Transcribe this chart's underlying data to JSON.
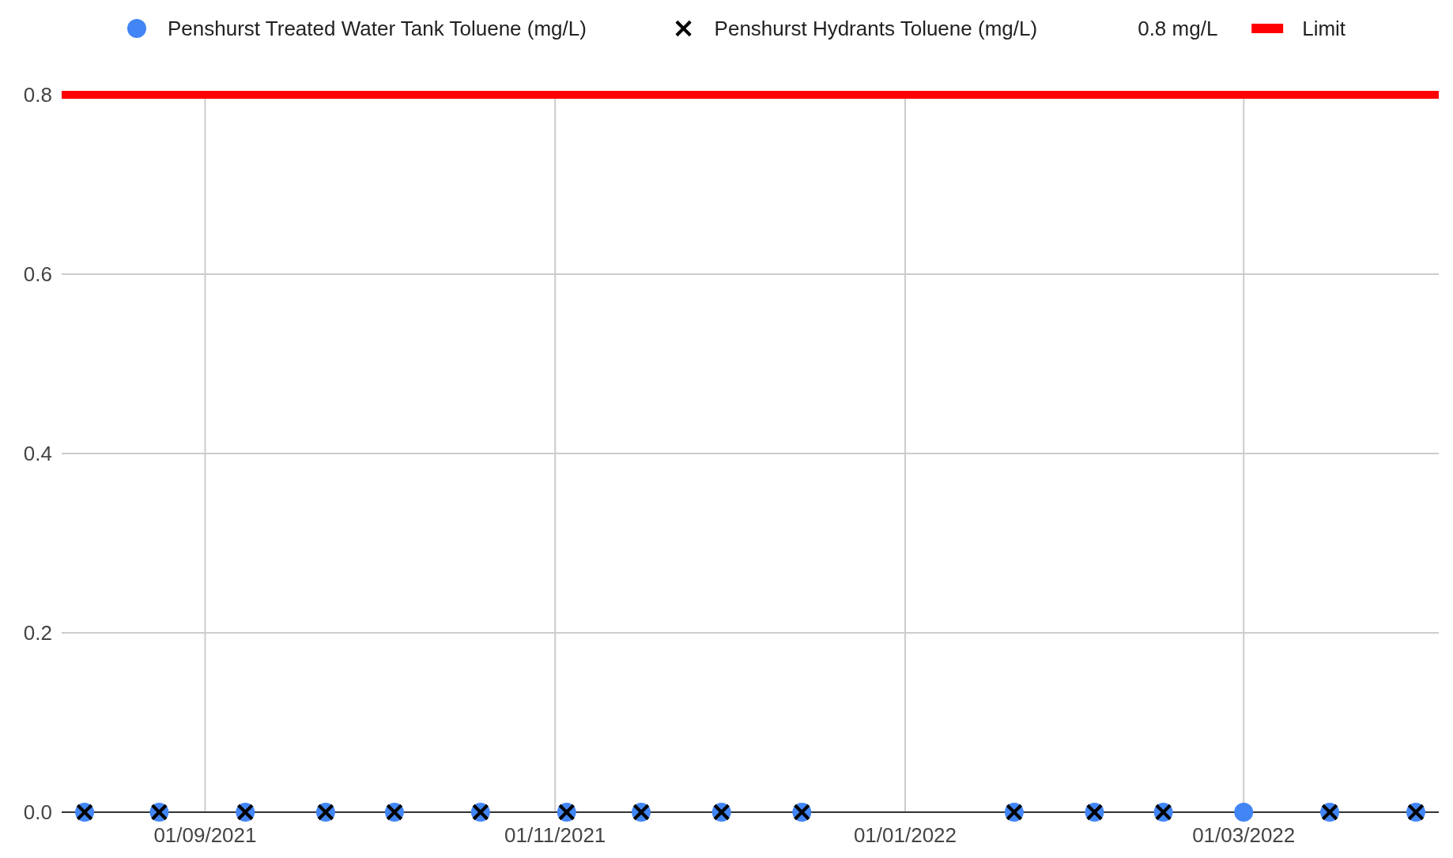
{
  "chart_data": {
    "type": "scatter",
    "legend": "top",
    "grid": true,
    "xlim": [
      "2021-08-07",
      "2022-04-04"
    ],
    "xticks": [
      {
        "value": "2021-09-01",
        "label": "01/09/2021"
      },
      {
        "value": "2021-11-01",
        "label": "01/11/2021"
      },
      {
        "value": "2022-01-01",
        "label": "01/01/2022"
      },
      {
        "value": "2022-03-01",
        "label": "01/03/2022"
      }
    ],
    "ylim": [
      0,
      0.8
    ],
    "yticks": [
      {
        "value": 0,
        "label": "0.0"
      },
      0.2,
      0.4,
      0.6,
      0.8
    ],
    "annotations": [
      "0.8 mg/L"
    ],
    "series": [
      {
        "name": "Penshurst Treated Water Tank Toluene (mg/L)",
        "marker": "circle",
        "color": "#4285f4",
        "x": [
          "2021-08-11",
          "2021-08-24",
          "2021-09-08",
          "2021-09-22",
          "2021-10-04",
          "2021-10-19",
          "2021-11-03",
          "2021-11-16",
          "2021-11-30",
          "2021-12-14",
          "2022-01-20",
          "2022-02-03",
          "2022-02-15",
          "2022-03-01",
          "2022-03-16",
          "2022-03-31"
        ],
        "values": [
          0,
          0,
          0,
          0,
          0,
          0,
          0,
          0,
          0,
          0,
          0,
          0,
          0,
          0,
          0,
          0
        ]
      },
      {
        "name": "Penshurst Hydrants Toluene (mg/L)",
        "marker": "cross",
        "color": "#000000",
        "x": [
          "2021-08-11",
          "2021-08-24",
          "2021-09-08",
          "2021-09-22",
          "2021-10-04",
          "2021-10-19",
          "2021-11-03",
          "2021-11-16",
          "2021-11-30",
          "2021-12-14",
          "2022-01-20",
          "2022-02-03",
          "2022-02-15",
          "2022-03-16",
          "2022-03-31"
        ],
        "values": [
          0,
          0,
          0,
          0,
          0,
          0,
          0,
          0,
          0,
          0,
          0,
          0,
          0,
          0,
          0
        ]
      },
      {
        "name": "Limit",
        "type": "line",
        "color": "#ff0000",
        "x": [
          "2021-08-07",
          "2022-04-04"
        ],
        "values": [
          0.8,
          0.8
        ]
      }
    ]
  }
}
